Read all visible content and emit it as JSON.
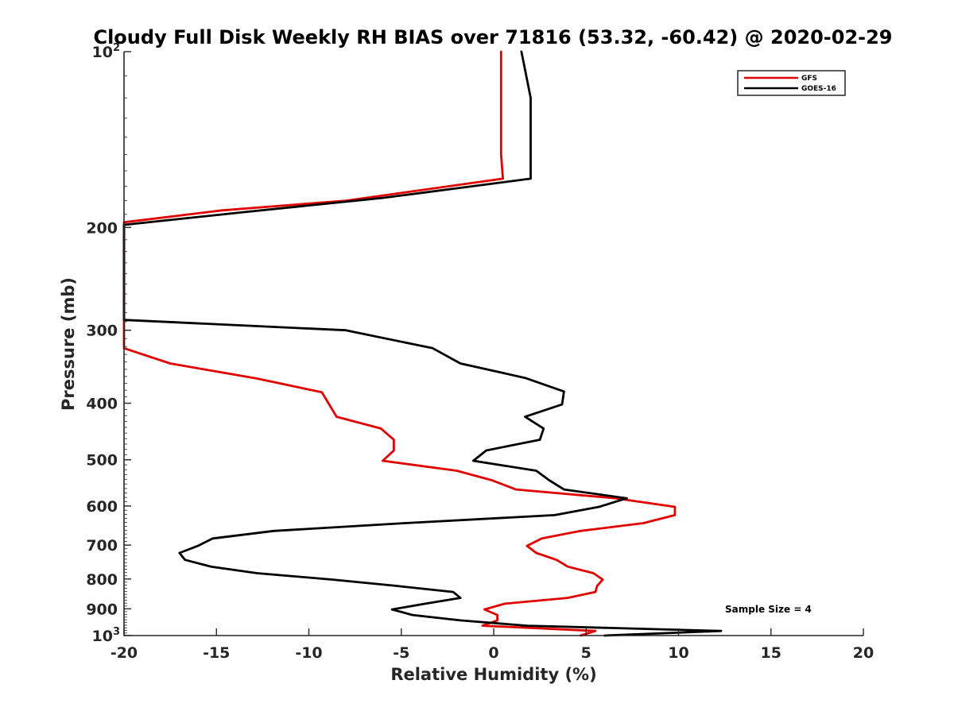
{
  "chart_data": {
    "type": "line",
    "title": "Cloudy Full Disk Weekly RH BIAS over 71816 (53.32, -60.42) @ 2020-02-29",
    "xlabel": "Relative Humidity (%)",
    "ylabel": "Pressure (mb)",
    "xlim": [
      -20,
      20
    ],
    "ylim": [
      100,
      1000
    ],
    "yscale": "log",
    "y_reversed": true,
    "x_ticks": [
      -20,
      -15,
      -10,
      -5,
      0,
      5,
      10,
      15,
      20
    ],
    "x_tick_labels": [
      "-20",
      "-15",
      "-10",
      "-5",
      "0",
      "5",
      "10",
      "15",
      "20"
    ],
    "y_ticks": [
      {
        "value": 100,
        "label": "10",
        "sup": "2"
      },
      {
        "value": 200,
        "label": "200",
        "sup": ""
      },
      {
        "value": 300,
        "label": "300",
        "sup": ""
      },
      {
        "value": 400,
        "label": "400",
        "sup": ""
      },
      {
        "value": 500,
        "label": "500",
        "sup": ""
      },
      {
        "value": 600,
        "label": "600",
        "sup": ""
      },
      {
        "value": 700,
        "label": "700",
        "sup": ""
      },
      {
        "value": 800,
        "label": "800",
        "sup": ""
      },
      {
        "value": 900,
        "label": "900",
        "sup": ""
      },
      {
        "value": 1000,
        "label": "10",
        "sup": "3"
      }
    ],
    "legend_position": "top-right",
    "annotation": "Sample Size = 4",
    "series": [
      {
        "name": "GFS",
        "color": "#e00000",
        "points": [
          {
            "x": 0.4,
            "y": 100
          },
          {
            "x": 0.4,
            "y": 125
          },
          {
            "x": 0.4,
            "y": 150
          },
          {
            "x": 0.5,
            "y": 165
          },
          {
            "x": -8.0,
            "y": 180
          },
          {
            "x": -14.7,
            "y": 187
          },
          {
            "x": -20.0,
            "y": 196
          },
          {
            "x": -20.0,
            "y": 322
          },
          {
            "x": -17.5,
            "y": 342
          },
          {
            "x": -12.8,
            "y": 363
          },
          {
            "x": -9.3,
            "y": 383
          },
          {
            "x": -8.9,
            "y": 402
          },
          {
            "x": -8.5,
            "y": 422
          },
          {
            "x": -6.1,
            "y": 442
          },
          {
            "x": -5.4,
            "y": 462
          },
          {
            "x": -5.4,
            "y": 482
          },
          {
            "x": -6.0,
            "y": 502
          },
          {
            "x": -2.0,
            "y": 522
          },
          {
            "x": -0.1,
            "y": 542
          },
          {
            "x": 1.2,
            "y": 562
          },
          {
            "x": 6.6,
            "y": 582
          },
          {
            "x": 9.8,
            "y": 602
          },
          {
            "x": 9.8,
            "y": 622
          },
          {
            "x": 8.1,
            "y": 642
          },
          {
            "x": 4.7,
            "y": 662
          },
          {
            "x": 2.6,
            "y": 682
          },
          {
            "x": 1.8,
            "y": 702
          },
          {
            "x": 2.3,
            "y": 722
          },
          {
            "x": 3.4,
            "y": 742
          },
          {
            "x": 4.0,
            "y": 762
          },
          {
            "x": 5.4,
            "y": 782
          },
          {
            "x": 5.9,
            "y": 802
          },
          {
            "x": 5.6,
            "y": 822
          },
          {
            "x": 5.5,
            "y": 842
          },
          {
            "x": 4.0,
            "y": 862
          },
          {
            "x": 0.6,
            "y": 882
          },
          {
            "x": -0.5,
            "y": 902
          },
          {
            "x": 0.2,
            "y": 922
          },
          {
            "x": 0.2,
            "y": 942
          },
          {
            "x": -0.6,
            "y": 962
          },
          {
            "x": 5.5,
            "y": 982
          },
          {
            "x": 4.7,
            "y": 1000
          }
        ]
      },
      {
        "name": "GOES-16",
        "color": "#000000",
        "points": [
          {
            "x": 1.5,
            "y": 100
          },
          {
            "x": 2.0,
            "y": 120
          },
          {
            "x": 2.0,
            "y": 165
          },
          {
            "x": -6.0,
            "y": 178
          },
          {
            "x": -13.3,
            "y": 188
          },
          {
            "x": -20.0,
            "y": 198
          },
          {
            "x": -20.0,
            "y": 288
          },
          {
            "x": -8.0,
            "y": 300
          },
          {
            "x": -3.3,
            "y": 322
          },
          {
            "x": -1.8,
            "y": 342
          },
          {
            "x": 1.7,
            "y": 362
          },
          {
            "x": 3.8,
            "y": 382
          },
          {
            "x": 3.7,
            "y": 402
          },
          {
            "x": 1.7,
            "y": 422
          },
          {
            "x": 2.7,
            "y": 442
          },
          {
            "x": 2.5,
            "y": 462
          },
          {
            "x": -0.4,
            "y": 482
          },
          {
            "x": -1.1,
            "y": 502
          },
          {
            "x": 2.3,
            "y": 522
          },
          {
            "x": 3.0,
            "y": 542
          },
          {
            "x": 3.8,
            "y": 562
          },
          {
            "x": 7.2,
            "y": 582
          },
          {
            "x": 5.7,
            "y": 602
          },
          {
            "x": 3.3,
            "y": 622
          },
          {
            "x": -4.8,
            "y": 642
          },
          {
            "x": -11.9,
            "y": 662
          },
          {
            "x": -15.2,
            "y": 682
          },
          {
            "x": -16.0,
            "y": 702
          },
          {
            "x": -17.0,
            "y": 722
          },
          {
            "x": -16.7,
            "y": 742
          },
          {
            "x": -15.3,
            "y": 762
          },
          {
            "x": -12.8,
            "y": 782
          },
          {
            "x": -8.7,
            "y": 802
          },
          {
            "x": -5.3,
            "y": 822
          },
          {
            "x": -2.2,
            "y": 842
          },
          {
            "x": -1.8,
            "y": 862
          },
          {
            "x": -3.7,
            "y": 882
          },
          {
            "x": -5.5,
            "y": 902
          },
          {
            "x": -4.4,
            "y": 922
          },
          {
            "x": -1.8,
            "y": 942
          },
          {
            "x": 1.8,
            "y": 962
          },
          {
            "x": 12.3,
            "y": 982
          },
          {
            "x": 6.0,
            "y": 1000
          }
        ]
      }
    ]
  }
}
